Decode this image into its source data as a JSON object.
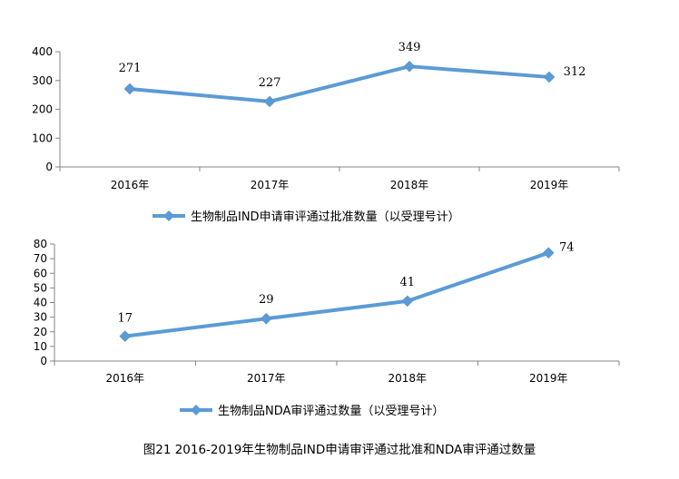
{
  "caption": "图21 2016-2019年生物制品IND申请审评通过批准和NDA审评通过数量",
  "colors": {
    "series": "#5B9BD5",
    "axis": "#868686"
  },
  "chart_data": [
    {
      "type": "line",
      "categories": [
        "2016年",
        "2017年",
        "2018年",
        "2019年"
      ],
      "series": [
        {
          "name": "生物制品IND申请审评通过批准数量（以受理号计）",
          "values": [
            271,
            227,
            349,
            312
          ]
        }
      ],
      "ylim": [
        0,
        400
      ],
      "yticks": [
        0,
        100,
        200,
        300,
        400
      ],
      "grid": false,
      "legend": "bottom",
      "data_labels": true
    },
    {
      "type": "line",
      "categories": [
        "2016年",
        "2017年",
        "2018年",
        "2019年"
      ],
      "series": [
        {
          "name": "生物制品NDA审评通过数量（以受理号计）",
          "values": [
            17,
            29,
            41,
            74
          ]
        }
      ],
      "ylim": [
        0,
        80
      ],
      "yticks": [
        0,
        10,
        20,
        30,
        40,
        50,
        60,
        70,
        80
      ],
      "grid": false,
      "legend": "bottom",
      "data_labels": true
    }
  ]
}
